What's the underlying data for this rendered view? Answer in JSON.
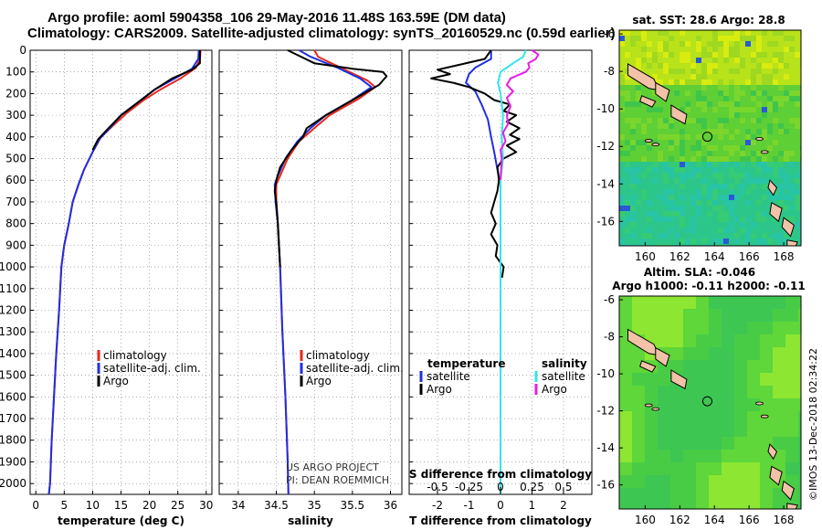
{
  "header": {
    "line1": "Argo profile: aoml 5904358_106 29-May-2016 11.48S 163.59E (DM data)",
    "line2": "Climatology: CARS2009. Satellite-adjusted climatology: synTS_20160529.nc (0.59d earlier)"
  },
  "colors": {
    "climatology": "#e8281e",
    "satellite": "#1f2fe0",
    "argo": "#000000",
    "sat_salinity": "#33e6e6",
    "argo_salinity": "#e61ee6"
  },
  "chart_data": [
    {
      "type": "line",
      "id": "temperature",
      "xlabel": "temperature (deg C)",
      "xlim": [
        -1,
        31
      ],
      "xticks": [
        0,
        5,
        10,
        15,
        20,
        25,
        30
      ],
      "ylim": [
        0,
        2050
      ],
      "yticks": [
        0,
        100,
        200,
        300,
        400,
        500,
        600,
        700,
        800,
        900,
        1000,
        1100,
        1200,
        1300,
        1400,
        1500,
        1600,
        1700,
        1800,
        1900,
        2000
      ],
      "legend": [
        "climatology",
        "satellite-adj. clim.",
        "Argo"
      ],
      "series": [
        {
          "name": "climatology",
          "color": "#e8281e",
          "points": [
            [
              29,
              0
            ],
            [
              28.9,
              40
            ],
            [
              28.2,
              80
            ],
            [
              25.5,
              130
            ],
            [
              22,
              180
            ],
            [
              19,
              230
            ],
            [
              16,
              290
            ],
            [
              13.5,
              350
            ],
            [
              11.5,
              400
            ],
            [
              10,
              470
            ],
            [
              8.5,
              550
            ],
            [
              7.5,
              620
            ],
            [
              6.5,
              700
            ],
            [
              5.8,
              800
            ],
            [
              5.0,
              900
            ],
            [
              4.5,
              1000
            ],
            [
              4.1,
              1200
            ],
            [
              3.6,
              1400
            ],
            [
              3.2,
              1600
            ],
            [
              2.8,
              1800
            ],
            [
              2.5,
              2000
            ],
            [
              2.3,
              2050
            ]
          ]
        },
        {
          "name": "satellite",
          "color": "#1f2fe0",
          "points": [
            [
              28.7,
              0
            ],
            [
              28.6,
              40
            ],
            [
              27.5,
              85
            ],
            [
              24.5,
              130
            ],
            [
              21,
              180
            ],
            [
              18,
              240
            ],
            [
              15,
              300
            ],
            [
              13,
              360
            ],
            [
              11.2,
              410
            ],
            [
              10,
              470
            ],
            [
              8.5,
              550
            ],
            [
              7.5,
              620
            ],
            [
              6.5,
              700
            ],
            [
              5.8,
              800
            ],
            [
              5.0,
              900
            ],
            [
              4.5,
              1000
            ],
            [
              4.1,
              1200
            ],
            [
              3.6,
              1400
            ],
            [
              3.2,
              1600
            ],
            [
              2.8,
              1800
            ],
            [
              2.5,
              2000
            ],
            [
              2.3,
              2050
            ]
          ]
        },
        {
          "name": "Argo",
          "color": "#000000",
          "points": [
            [
              28.9,
              0
            ],
            [
              28.9,
              60
            ],
            [
              27.5,
              90
            ],
            [
              24,
              130
            ],
            [
              21,
              180
            ],
            [
              18,
              240
            ],
            [
              15,
              300
            ],
            [
              12.8,
              360
            ],
            [
              11,
              410
            ],
            [
              10,
              460
            ]
          ]
        }
      ],
      "annotations": []
    },
    {
      "type": "line",
      "id": "salinity",
      "xlabel": "salinity",
      "xlim": [
        33.75,
        36.15
      ],
      "xticks": [
        34,
        34.5,
        35,
        35.5,
        36
      ],
      "ylim": [
        0,
        2050
      ],
      "yticks": [
        0,
        100,
        200,
        300,
        400,
        500,
        600,
        700,
        800,
        900,
        1000,
        1100,
        1200,
        1300,
        1400,
        1500,
        1600,
        1700,
        1800,
        1900,
        2000
      ],
      "legend": [
        "climatology",
        "satellite-adj. clim.",
        "Argo"
      ],
      "series": [
        {
          "name": "climatology",
          "color": "#e8281e",
          "points": [
            [
              35.0,
              0
            ],
            [
              35.05,
              30
            ],
            [
              35.4,
              90
            ],
            [
              35.7,
              140
            ],
            [
              35.8,
              170
            ],
            [
              35.6,
              220
            ],
            [
              35.2,
              300
            ],
            [
              35.0,
              360
            ],
            [
              34.8,
              420
            ],
            [
              34.65,
              500
            ],
            [
              34.55,
              580
            ],
            [
              34.5,
              620
            ],
            [
              34.5,
              700
            ],
            [
              34.52,
              800
            ],
            [
              34.55,
              1000
            ],
            [
              34.58,
              1300
            ],
            [
              34.62,
              1600
            ],
            [
              34.65,
              1900
            ],
            [
              34.66,
              2050
            ]
          ]
        },
        {
          "name": "satellite",
          "color": "#1f2fe0",
          "points": [
            [
              34.8,
              0
            ],
            [
              34.95,
              30
            ],
            [
              35.3,
              80
            ],
            [
              35.6,
              130
            ],
            [
              35.75,
              170
            ],
            [
              35.5,
              230
            ],
            [
              35.15,
              300
            ],
            [
              34.95,
              360
            ],
            [
              34.78,
              420
            ],
            [
              34.62,
              500
            ],
            [
              34.52,
              580
            ],
            [
              34.48,
              620
            ],
            [
              34.49,
              700
            ],
            [
              34.52,
              800
            ],
            [
              34.55,
              1000
            ],
            [
              34.58,
              1300
            ],
            [
              34.62,
              1600
            ],
            [
              34.65,
              1900
            ],
            [
              34.66,
              2050
            ]
          ]
        },
        {
          "name": "Argo",
          "color": "#000000",
          "points": [
            [
              34.65,
              0
            ],
            [
              35.0,
              60
            ],
            [
              35.5,
              85
            ],
            [
              35.9,
              100
            ],
            [
              35.95,
              120
            ],
            [
              35.85,
              160
            ],
            [
              35.5,
              230
            ],
            [
              35.15,
              300
            ],
            [
              34.9,
              360
            ],
            [
              34.85,
              400
            ],
            [
              34.7,
              460
            ],
            [
              34.55,
              540
            ],
            [
              34.5,
              600
            ],
            [
              34.48,
              650
            ],
            [
              34.5,
              700
            ],
            [
              34.52,
              800
            ],
            [
              34.55,
              1000
            ]
          ]
        }
      ],
      "annotations": [
        "US ARGO PROJECT",
        "PI: DEAN ROEMMICH"
      ]
    },
    {
      "type": "line",
      "id": "difference",
      "xlabel": "T difference from climatology",
      "top_label": "S difference from climatology",
      "xlim": [
        -2.9,
        2.9
      ],
      "xticks": [
        -2,
        -1,
        0,
        1,
        2
      ],
      "top_ticks": [
        "-0.5",
        "-0.25",
        "0",
        "0.25",
        "0.5"
      ],
      "top_tick_values": [
        -0.5,
        -0.25,
        0,
        0.25,
        0.5
      ],
      "s_scale": 4,
      "ylim": [
        0,
        2050
      ],
      "yticks": [
        0,
        100,
        200,
        300,
        400,
        500,
        600,
        700,
        800,
        900,
        1000,
        1100,
        1200,
        1300,
        1400,
        1500,
        1600,
        1700,
        1800,
        1900,
        2000
      ],
      "legend_left_title": "temperature",
      "legend_right_title": "salinity",
      "legend_left": [
        "satellite",
        "Argo"
      ],
      "legend_right": [
        "satellite",
        "Argo"
      ],
      "series": [
        {
          "name": "T satellite",
          "color": "#1f2fe0",
          "points": [
            [
              -0.3,
              0
            ],
            [
              -0.3,
              40
            ],
            [
              -0.8,
              80
            ],
            [
              -1.0,
              110
            ],
            [
              -1.1,
              150
            ],
            [
              -0.8,
              190
            ],
            [
              -0.6,
              250
            ],
            [
              -0.4,
              320
            ],
            [
              -0.3,
              400
            ],
            [
              -0.2,
              470
            ],
            [
              -0.1,
              550
            ],
            [
              0,
              620
            ],
            [
              0,
              800
            ],
            [
              0,
              2050
            ]
          ]
        },
        {
          "name": "T Argo",
          "color": "#000000",
          "points": [
            [
              -0.3,
              0
            ],
            [
              -0.5,
              40
            ],
            [
              -1.4,
              70
            ],
            [
              -2.0,
              90
            ],
            [
              -1.6,
              110
            ],
            [
              -2.2,
              130
            ],
            [
              -1.5,
              150
            ],
            [
              -1.0,
              170
            ],
            [
              -0.5,
              200
            ],
            [
              -0.2,
              230
            ],
            [
              0.3,
              250
            ],
            [
              0.1,
              280
            ],
            [
              0.5,
              300
            ],
            [
              0.2,
              330
            ],
            [
              0.6,
              360
            ],
            [
              0.3,
              390
            ],
            [
              0.6,
              410
            ],
            [
              0.2,
              440
            ],
            [
              0.5,
              470
            ],
            [
              0.1,
              500
            ],
            [
              -0.1,
              540
            ],
            [
              -0.05,
              600
            ],
            [
              -0.1,
              650
            ],
            [
              -0.2,
              700
            ],
            [
              -0.3,
              750
            ],
            [
              -0.15,
              800
            ],
            [
              -0.3,
              850
            ],
            [
              -0.1,
              900
            ],
            [
              -0.15,
              950
            ],
            [
              0.1,
              1000
            ],
            [
              0.05,
              1050
            ]
          ]
        },
        {
          "name": "S satellite",
          "color": "#33e6e6",
          "points": [
            [
              0.2,
              0
            ],
            [
              0.18,
              30
            ],
            [
              0.1,
              60
            ],
            [
              0.05,
              80
            ],
            [
              0.0,
              100
            ],
            [
              -0.02,
              150
            ],
            [
              0.0,
              200
            ],
            [
              0.02,
              300
            ],
            [
              0.01,
              400
            ],
            [
              0.02,
              500
            ],
            [
              0.0,
              600
            ],
            [
              0.0,
              1000
            ],
            [
              0.0,
              1500
            ],
            [
              0.0,
              2050
            ]
          ]
        },
        {
          "name": "S Argo",
          "color": "#e61ee6",
          "points": [
            [
              0.25,
              0
            ],
            [
              0.3,
              20
            ],
            [
              0.28,
              40
            ],
            [
              0.22,
              60
            ],
            [
              0.23,
              80
            ],
            [
              0.2,
              100
            ],
            [
              0.08,
              130
            ],
            [
              0.05,
              160
            ],
            [
              0.1,
              190
            ],
            [
              0.05,
              220
            ],
            [
              0.08,
              260
            ],
            [
              0.05,
              300
            ],
            [
              0.06,
              340
            ],
            [
              0.02,
              380
            ],
            [
              0.04,
              420
            ],
            [
              0.0,
              460
            ],
            [
              0.01,
              500
            ],
            [
              0.0,
              600
            ]
          ]
        }
      ],
      "annotations": []
    },
    {
      "type": "heatmap",
      "id": "sst_map",
      "title": "sat. SST: 28.6 Argo: 28.8",
      "xticks": [
        "160",
        "162",
        "164",
        "166",
        "168"
      ],
      "yticks": [
        "-6",
        "-8",
        "-10",
        "-12",
        "-14",
        "-16"
      ],
      "xlim": [
        158.5,
        169
      ],
      "ylim": [
        -17.3,
        -5.8
      ],
      "float_position": [
        163.59,
        -11.48
      ]
    },
    {
      "type": "heatmap",
      "id": "sla_map",
      "title1": "Altim. SLA: -0.046",
      "title2": "Argo h1000: -0.11 h2000: -0.11",
      "xticks": [
        "160",
        "162",
        "164",
        "166",
        "168"
      ],
      "yticks": [
        "-6",
        "-8",
        "-10",
        "-12",
        "-14",
        "-16"
      ],
      "xlim": [
        158.5,
        169
      ],
      "ylim": [
        -17.3,
        -5.8
      ],
      "float_position": [
        163.59,
        -11.48
      ]
    }
  ],
  "footer": {
    "stamp": "©IMOS 13-Dec-2018 02:34:22"
  }
}
